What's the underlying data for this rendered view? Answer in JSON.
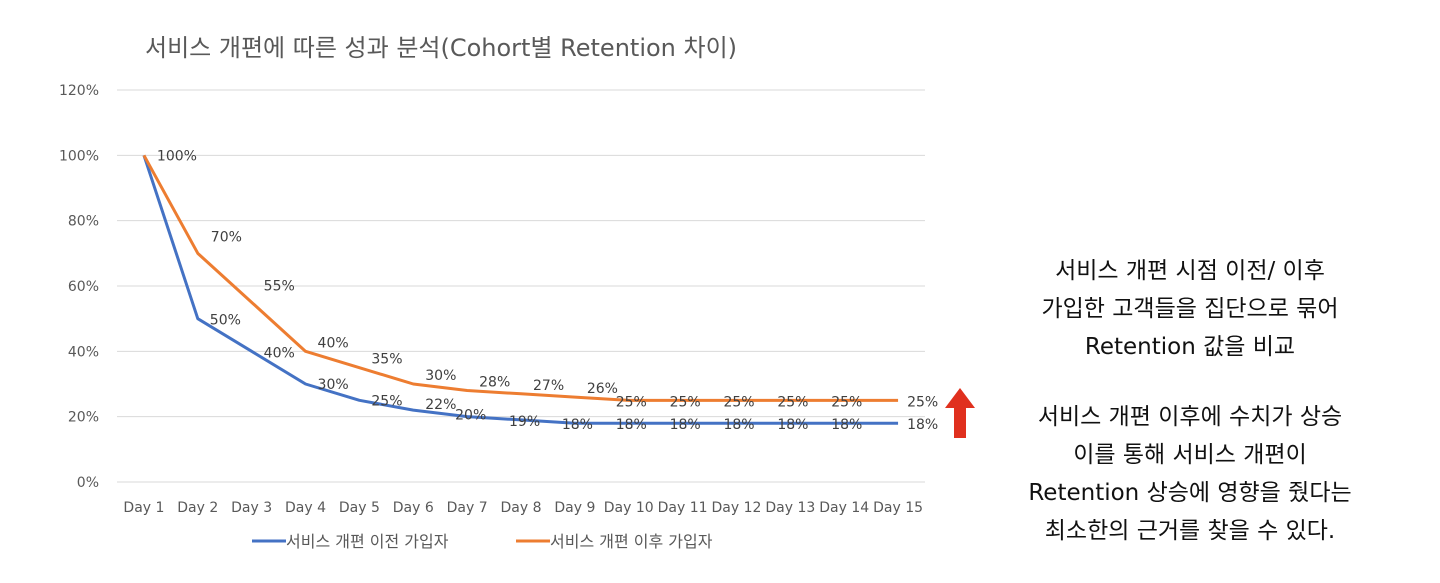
{
  "chart_data": {
    "type": "line",
    "title": "서비스 개편에 따른 성과 분석(Cohort별 Retention 차이)",
    "categories": [
      "Day 1",
      "Day 2",
      "Day 3",
      "Day 4",
      "Day 5",
      "Day 6",
      "Day 7",
      "Day 8",
      "Day 9",
      "Day 10",
      "Day 11",
      "Day 12",
      "Day 13",
      "Day 14",
      "Day 15"
    ],
    "yticks": [
      "0%",
      "20%",
      "40%",
      "60%",
      "80%",
      "100%",
      "120%"
    ],
    "ylim": [
      0,
      120
    ],
    "grid": true,
    "legend_position": "bottom",
    "series": [
      {
        "name": "서비스 개편 이전 가입자",
        "color": "#4472C4",
        "values": [
          100,
          50,
          40,
          30,
          25,
          22,
          20,
          19,
          18,
          18,
          18,
          18,
          18,
          18,
          18
        ],
        "labels": [
          "",
          "50%",
          "40%",
          "30%",
          "25%",
          "22%",
          "20%",
          "19%",
          "18%",
          "18%",
          "18%",
          "18%",
          "18%",
          "18%",
          "18%"
        ]
      },
      {
        "name": "서비스 개편 이후 가입자",
        "color": "#ED7D31",
        "values": [
          100,
          70,
          55,
          40,
          35,
          30,
          28,
          27,
          26,
          25,
          25,
          25,
          25,
          25,
          25
        ],
        "labels": [
          "100%",
          "70%",
          "55%",
          "40%",
          "35%",
          "30%",
          "28%",
          "27%",
          "26%",
          "25%",
          "25%",
          "25%",
          "25%",
          "25%",
          "25%"
        ]
      }
    ]
  },
  "notes": {
    "block1": [
      "서비스 개편 시점 이전/ 이후",
      "가입한 고객들을 집단으로 묶어",
      "Retention 값을 비교"
    ],
    "block2": [
      "서비스 개편 이후에 수치가 상승",
      "이를 통해 서비스 개편이",
      "Retention 상승에 영향을 줬다는",
      "최소한의 근거를 찾을 수 있다."
    ]
  },
  "arrow": {
    "icon": "up-arrow-icon",
    "color": "#E0301E"
  }
}
